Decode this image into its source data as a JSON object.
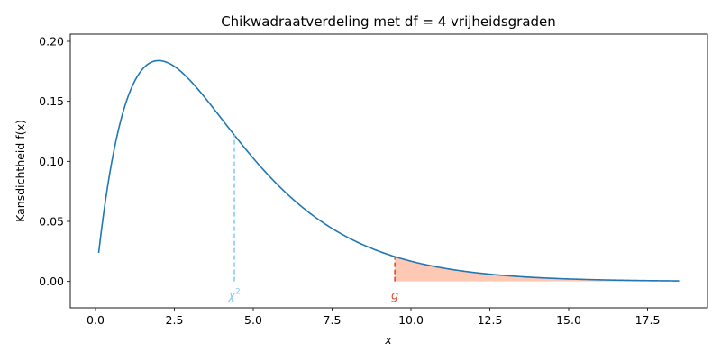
{
  "chart_data": {
    "type": "line",
    "title": "Chikwadraatverdeling met df = 4 vrijheidsgraden",
    "xlabel": "x",
    "ylabel": "Kansdichtheid f(x)",
    "xlim": [
      -0.8,
      19.4
    ],
    "ylim": [
      -0.022,
      0.206
    ],
    "x_ticks": [
      0.0,
      2.5,
      5.0,
      7.5,
      10.0,
      12.5,
      15.0,
      17.5
    ],
    "x_tick_labels": [
      "0.0",
      "2.5",
      "5.0",
      "7.5",
      "10.0",
      "12.5",
      "15.0",
      "17.5"
    ],
    "y_ticks": [
      0.0,
      0.05,
      0.1,
      0.15,
      0.2
    ],
    "y_tick_labels": [
      "0.00",
      "0.05",
      "0.10",
      "0.15",
      "0.20"
    ],
    "grid": false,
    "series": [
      {
        "distribution": "chi-square",
        "df": 4,
        "x_range": [
          0.1,
          18.5
        ],
        "color": "#1f77b4"
      }
    ],
    "markers": [
      {
        "label": "χ²",
        "x": 4.4,
        "color": "#87ceeb",
        "style": "dashed"
      },
      {
        "label": "g",
        "x": 9.49,
        "color": "#e34a33",
        "style": "dashed"
      }
    ],
    "shaded_region": {
      "from": 9.49,
      "to": 18.5,
      "color": "#fcbba1"
    }
  }
}
